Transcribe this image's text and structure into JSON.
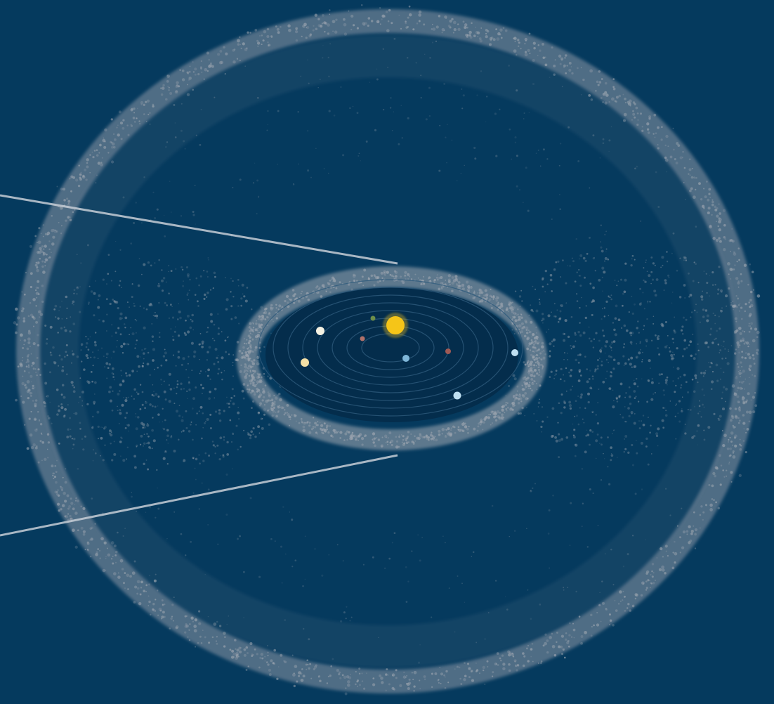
{
  "colors": {
    "background": "#053a5e",
    "dust": "#9aa3ae",
    "inner_disk": "#042d4c",
    "orbit_line": "#2e5a7c",
    "pointer_line": "#c7ced6",
    "sun": "#f5c518"
  },
  "bodies": [
    {
      "name": "sun",
      "color": "#f5c518"
    },
    {
      "name": "planet-1",
      "color": "#6e8f4a"
    },
    {
      "name": "planet-2",
      "color": "#b0716a"
    },
    {
      "name": "planet-3",
      "color": "#f4f1e2"
    },
    {
      "name": "planet-4",
      "color": "#f3dfa6"
    },
    {
      "name": "planet-5",
      "color": "#7fb6d8"
    },
    {
      "name": "planet-6",
      "color": "#a05a55"
    },
    {
      "name": "planet-7",
      "color": "#bfe0f2"
    },
    {
      "name": "planet-8",
      "color": "#bfe0f2"
    }
  ]
}
